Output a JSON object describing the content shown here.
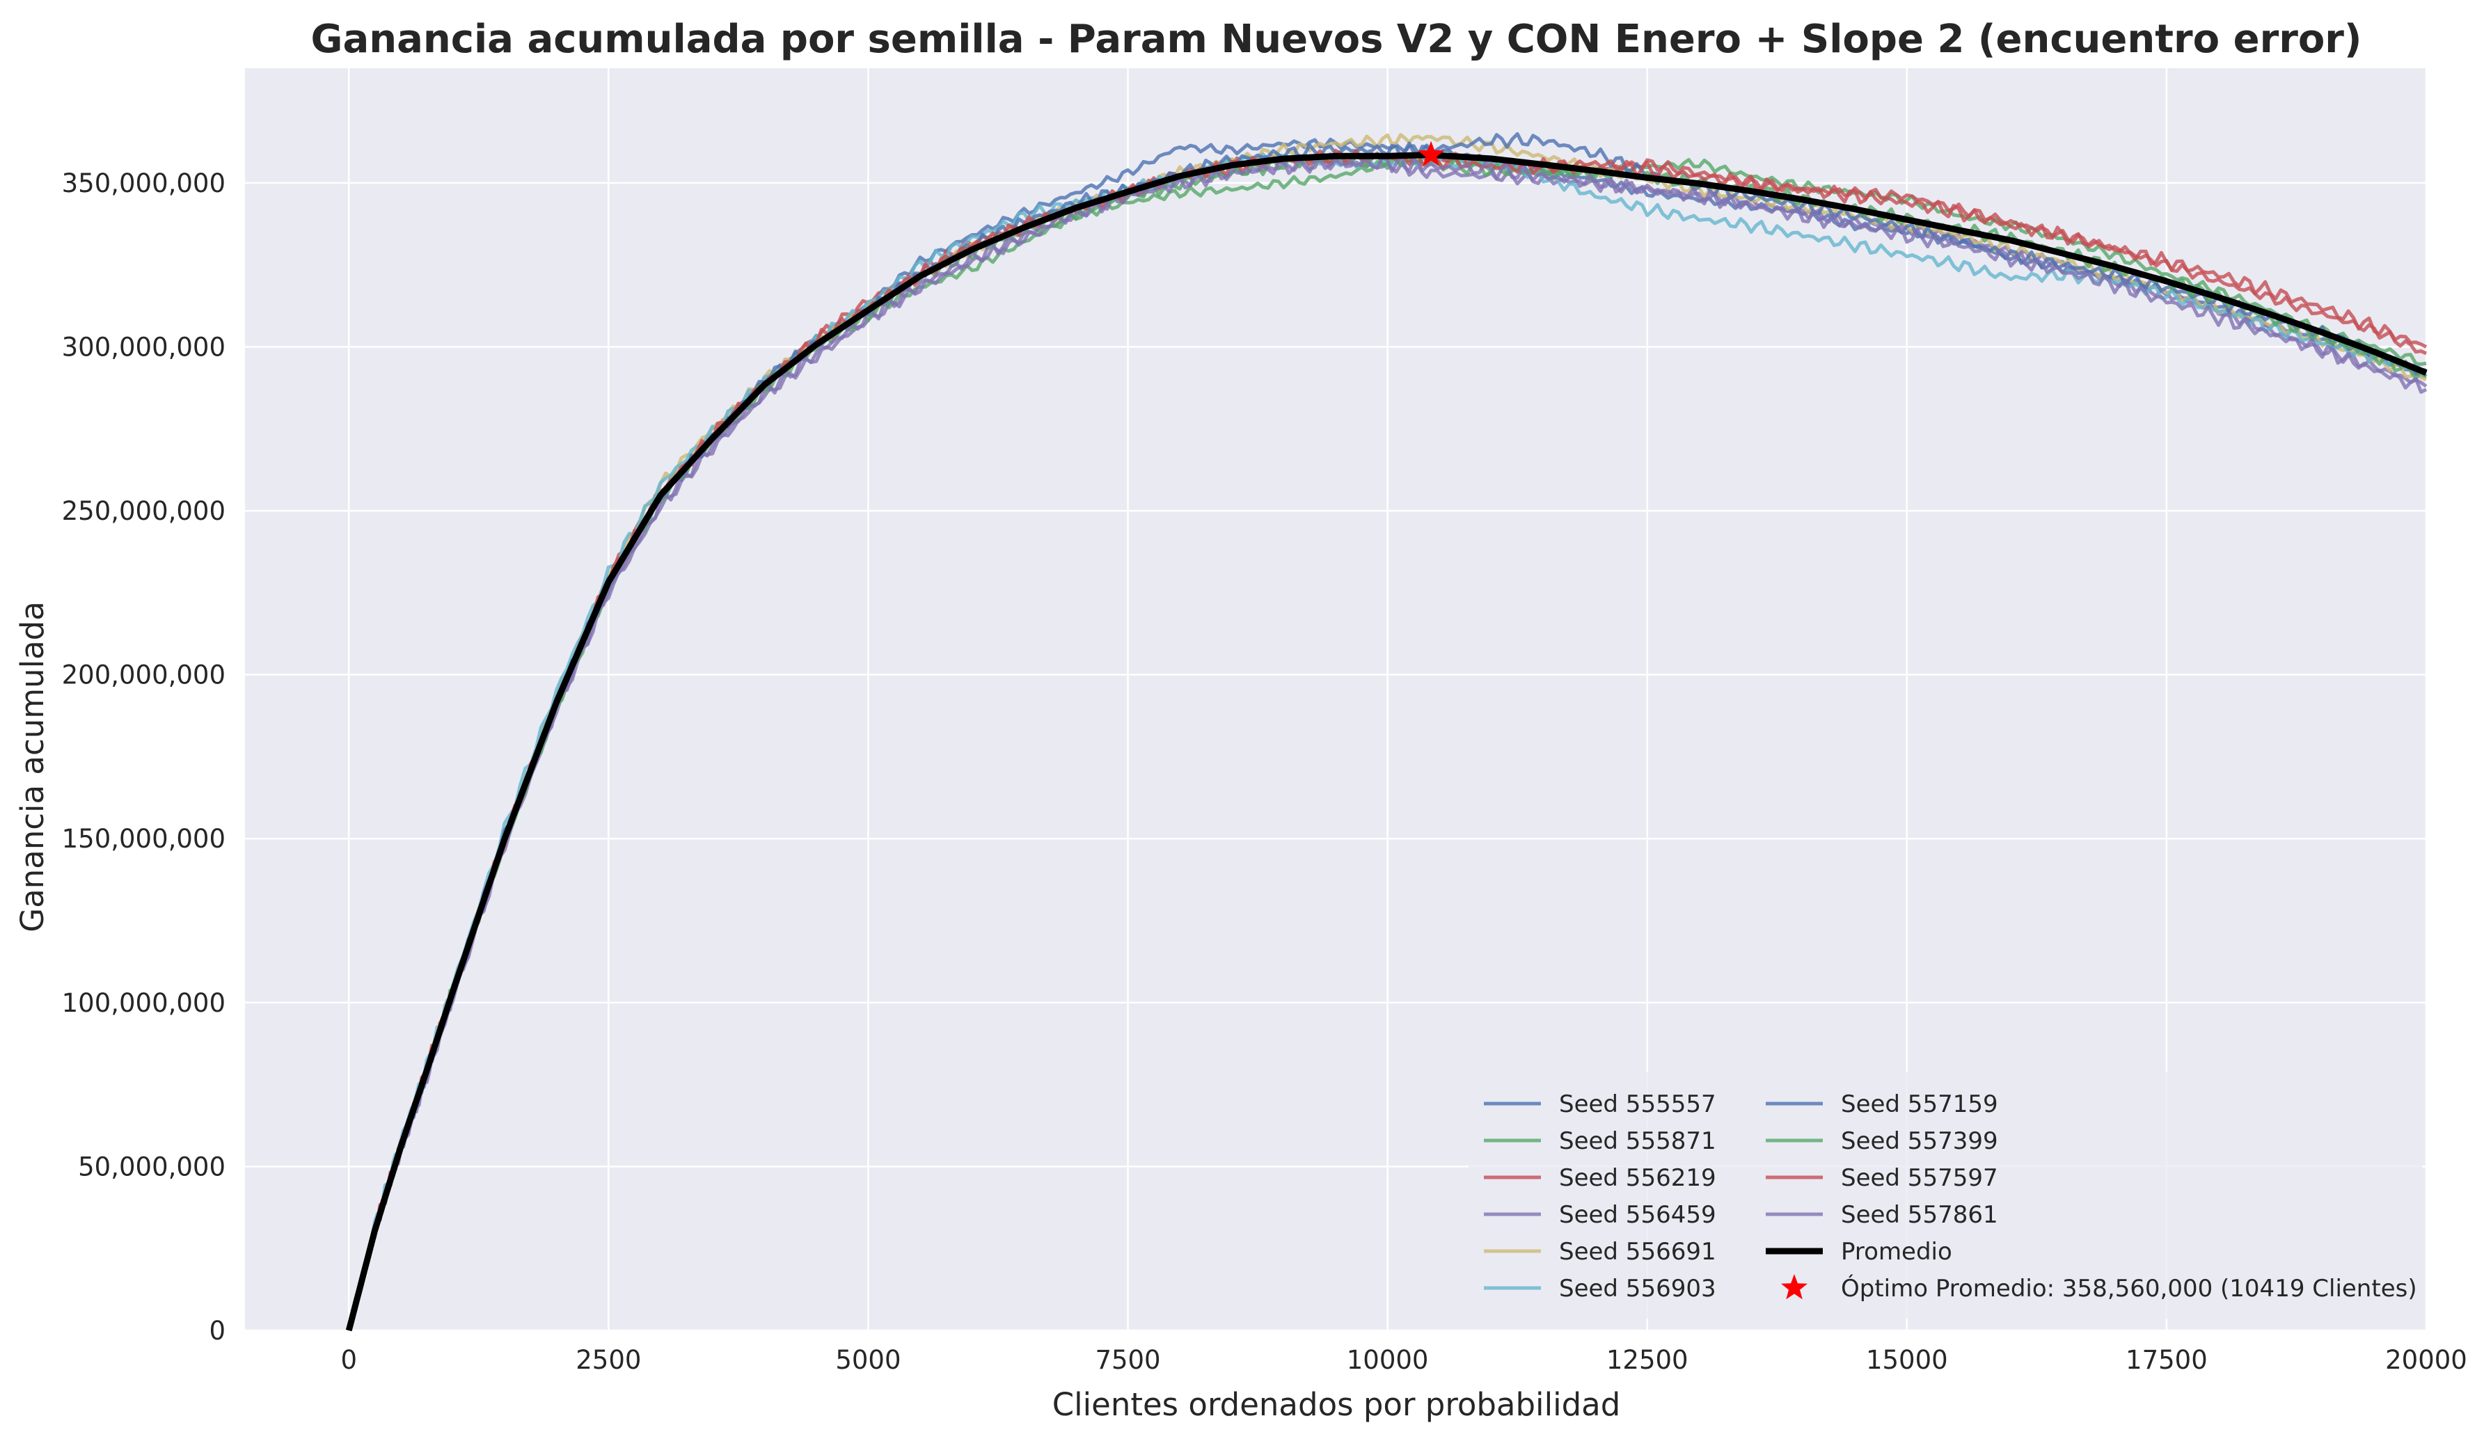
{
  "chart_data": {
    "type": "line",
    "title": "Ganancia acumulada por semilla - Param Nuevos V2 y CON Enero + Slope 2 (encuentro error)",
    "xlabel": "Clientes ordenados por probabilidad",
    "ylabel": "Ganancia acumulada",
    "xlim": [
      -1000,
      20000
    ],
    "ylim": [
      0,
      385000000
    ],
    "xticks": [
      0,
      2500,
      5000,
      7500,
      10000,
      12500,
      15000,
      17500,
      20000
    ],
    "xtick_labels": [
      "0",
      "2500",
      "5000",
      "7500",
      "10000",
      "12500",
      "15000",
      "17500",
      "20000"
    ],
    "yticks": [
      0,
      50000000,
      100000000,
      150000000,
      200000000,
      250000000,
      300000000,
      350000000
    ],
    "ytick_labels": [
      "0",
      "50,000,000",
      "100,000,000",
      "150,000,000",
      "200,000,000",
      "250,000,000",
      "300,000,000",
      "350,000,000"
    ],
    "grid": true,
    "legend_position": "lower-right",
    "x": [
      0,
      250,
      500,
      750,
      1000,
      1500,
      2000,
      2500,
      3000,
      3500,
      4000,
      4500,
      5000,
      5500,
      6000,
      6500,
      7000,
      7500,
      8000,
      8500,
      9000,
      9500,
      10000,
      10419,
      11000,
      11500,
      12000,
      12500,
      13000,
      13500,
      14000,
      14500,
      15000,
      15500,
      16000,
      16500,
      17000,
      17500,
      18000,
      18500,
      19000,
      19500,
      20000
    ],
    "series": [
      {
        "name": "Seed 555557",
        "color": "#4C72B0",
        "values": [
          0,
          30000000,
          55000000,
          78000000,
          103000000,
          150000000,
          193000000,
          228000000,
          255000000,
          272000000,
          290000000,
          302000000,
          313000000,
          326000000,
          334000000,
          341000000,
          347000000,
          353000000,
          361000000,
          360000000,
          362000000,
          362000000,
          361000000,
          360000000,
          357000000,
          354000000,
          351000000,
          347000000,
          345000000,
          343000000,
          341000000,
          337000000,
          335000000,
          333000000,
          327000000,
          324000000,
          321000000,
          317000000,
          312000000,
          307000000,
          302000000,
          297000000,
          291000000
        ]
      },
      {
        "name": "Seed 555871",
        "color": "#55A868",
        "values": [
          0,
          30000000,
          56000000,
          80000000,
          104000000,
          148000000,
          190000000,
          226000000,
          254000000,
          271000000,
          287000000,
          300000000,
          310000000,
          318000000,
          324000000,
          332000000,
          340000000,
          344000000,
          347000000,
          348000000,
          350000000,
          352000000,
          356000000,
          358000000,
          355000000,
          353000000,
          353000000,
          355000000,
          356000000,
          352000000,
          349000000,
          347000000,
          345000000,
          340000000,
          337000000,
          333000000,
          328000000,
          322000000,
          317000000,
          311000000,
          305000000,
          300000000,
          295000000
        ]
      },
      {
        "name": "Seed 556219",
        "color": "#C44E52",
        "values": [
          0,
          31000000,
          57000000,
          79000000,
          103000000,
          150000000,
          192000000,
          230000000,
          256000000,
          273000000,
          289000000,
          303000000,
          314000000,
          323000000,
          332000000,
          337000000,
          342000000,
          347000000,
          353000000,
          356000000,
          357000000,
          357000000,
          358000000,
          358000000,
          357000000,
          355000000,
          354000000,
          356000000,
          353000000,
          350000000,
          348000000,
          347000000,
          346000000,
          342000000,
          338000000,
          334000000,
          330000000,
          325000000,
          320000000,
          315000000,
          310000000,
          305000000,
          298000000
        ]
      },
      {
        "name": "Seed 556459",
        "color": "#8172B2",
        "values": [
          0,
          30000000,
          55000000,
          77000000,
          101000000,
          148000000,
          189000000,
          225000000,
          251000000,
          269000000,
          285000000,
          297000000,
          308000000,
          318000000,
          326000000,
          333000000,
          340000000,
          346000000,
          350000000,
          353000000,
          355000000,
          356000000,
          355000000,
          353000000,
          352000000,
          351000000,
          350000000,
          348000000,
          346000000,
          344000000,
          341000000,
          338000000,
          336000000,
          333000000,
          329000000,
          325000000,
          320000000,
          316000000,
          311000000,
          305000000,
          299000000,
          294000000,
          288000000
        ]
      },
      {
        "name": "Seed 556691",
        "color": "#CCB974",
        "values": [
          0,
          31000000,
          56000000,
          80000000,
          104000000,
          151000000,
          193000000,
          230000000,
          258000000,
          275000000,
          290000000,
          302000000,
          312000000,
          322000000,
          330000000,
          337000000,
          343000000,
          348000000,
          353000000,
          357000000,
          360000000,
          362000000,
          363000000,
          364000000,
          361000000,
          358000000,
          354000000,
          351000000,
          348000000,
          345000000,
          343000000,
          340000000,
          337000000,
          334000000,
          330000000,
          326000000,
          322000000,
          317000000,
          312000000,
          307000000,
          302000000,
          296000000,
          290000000
        ]
      },
      {
        "name": "Seed 556903",
        "color": "#64B5CD",
        "values": [
          0,
          32000000,
          58000000,
          81000000,
          105000000,
          153000000,
          195000000,
          231000000,
          258000000,
          274000000,
          290000000,
          302000000,
          313000000,
          325000000,
          333000000,
          340000000,
          344000000,
          348000000,
          352000000,
          356000000,
          358000000,
          357000000,
          356000000,
          357000000,
          356000000,
          352000000,
          346000000,
          342000000,
          339000000,
          337000000,
          334000000,
          331000000,
          328000000,
          325000000,
          321000000,
          322000000,
          320000000,
          316000000,
          311000000,
          306000000,
          301000000,
          297000000,
          293000000
        ]
      },
      {
        "name": "Seed 557159",
        "color": "#4C72B0",
        "values": [
          0,
          30000000,
          55000000,
          79000000,
          103000000,
          151000000,
          192000000,
          228000000,
          254000000,
          272000000,
          290000000,
          301000000,
          311000000,
          322000000,
          331000000,
          338000000,
          344000000,
          348000000,
          353000000,
          357000000,
          359000000,
          360000000,
          360000000,
          360000000,
          363000000,
          363000000,
          359000000,
          353000000,
          349000000,
          346000000,
          343000000,
          340000000,
          336000000,
          332000000,
          328000000,
          325000000,
          322000000,
          318000000,
          314000000,
          309000000,
          304000000,
          298000000,
          292000000
        ]
      },
      {
        "name": "Seed 557399",
        "color": "#55A868",
        "values": [
          0,
          30000000,
          56000000,
          79000000,
          104000000,
          149000000,
          191000000,
          228000000,
          254000000,
          272000000,
          288000000,
          300000000,
          310000000,
          321000000,
          329000000,
          335000000,
          341000000,
          346000000,
          350000000,
          353000000,
          356000000,
          357000000,
          357000000,
          356000000,
          354000000,
          353000000,
          353000000,
          352000000,
          350000000,
          348000000,
          345000000,
          342000000,
          339000000,
          336000000,
          333000000,
          329000000,
          324000000,
          320000000,
          315000000,
          309000000,
          303000000,
          297000000,
          291000000
        ]
      },
      {
        "name": "Seed 557597",
        "color": "#C44E52",
        "values": [
          0,
          31000000,
          56000000,
          80000000,
          104000000,
          150000000,
          192000000,
          229000000,
          255000000,
          273000000,
          289000000,
          302000000,
          312000000,
          322000000,
          331000000,
          337000000,
          342000000,
          347000000,
          352000000,
          355000000,
          357000000,
          358000000,
          358000000,
          357000000,
          355000000,
          355000000,
          356000000,
          354000000,
          352000000,
          350000000,
          348000000,
          346000000,
          344000000,
          341000000,
          337000000,
          334000000,
          330000000,
          326000000,
          322000000,
          317000000,
          312000000,
          306000000,
          300000000
        ]
      },
      {
        "name": "Seed 557861",
        "color": "#8172B2",
        "values": [
          0,
          30000000,
          55000000,
          78000000,
          102000000,
          149000000,
          190000000,
          226000000,
          252000000,
          270000000,
          286000000,
          298000000,
          309000000,
          319000000,
          327000000,
          334000000,
          341000000,
          346000000,
          350000000,
          353000000,
          355000000,
          356000000,
          356000000,
          355000000,
          354000000,
          352000000,
          350000000,
          348000000,
          346000000,
          343000000,
          340000000,
          337000000,
          334000000,
          331000000,
          327000000,
          323000000,
          319000000,
          314000000,
          309000000,
          304000000,
          299000000,
          293000000,
          287000000
        ]
      },
      {
        "name": "Promedio",
        "color": "#000000",
        "values": [
          0,
          30500000,
          56000000,
          79300000,
          103300000,
          150000000,
          191700000,
          228300000,
          254700000,
          272100000,
          288400000,
          300700000,
          311200000,
          321600000,
          329700000,
          336400000,
          342400000,
          347300000,
          352100000,
          355400000,
          357400000,
          358200000,
          358200000,
          358560000,
          357400000,
          355600000,
          353700000,
          351600000,
          349800000,
          347500000,
          344900000,
          342000000,
          338800000,
          335600000,
          332500000,
          328500000,
          324500000,
          320000000,
          315100000,
          309900000,
          304400000,
          298500000,
          292100000
        ]
      }
    ],
    "optimum": {
      "x": 10419,
      "y": 358560000,
      "label": "Óptimo Promedio: 358,560,000 (10419 Clientes)",
      "color": "#FF0000"
    }
  }
}
